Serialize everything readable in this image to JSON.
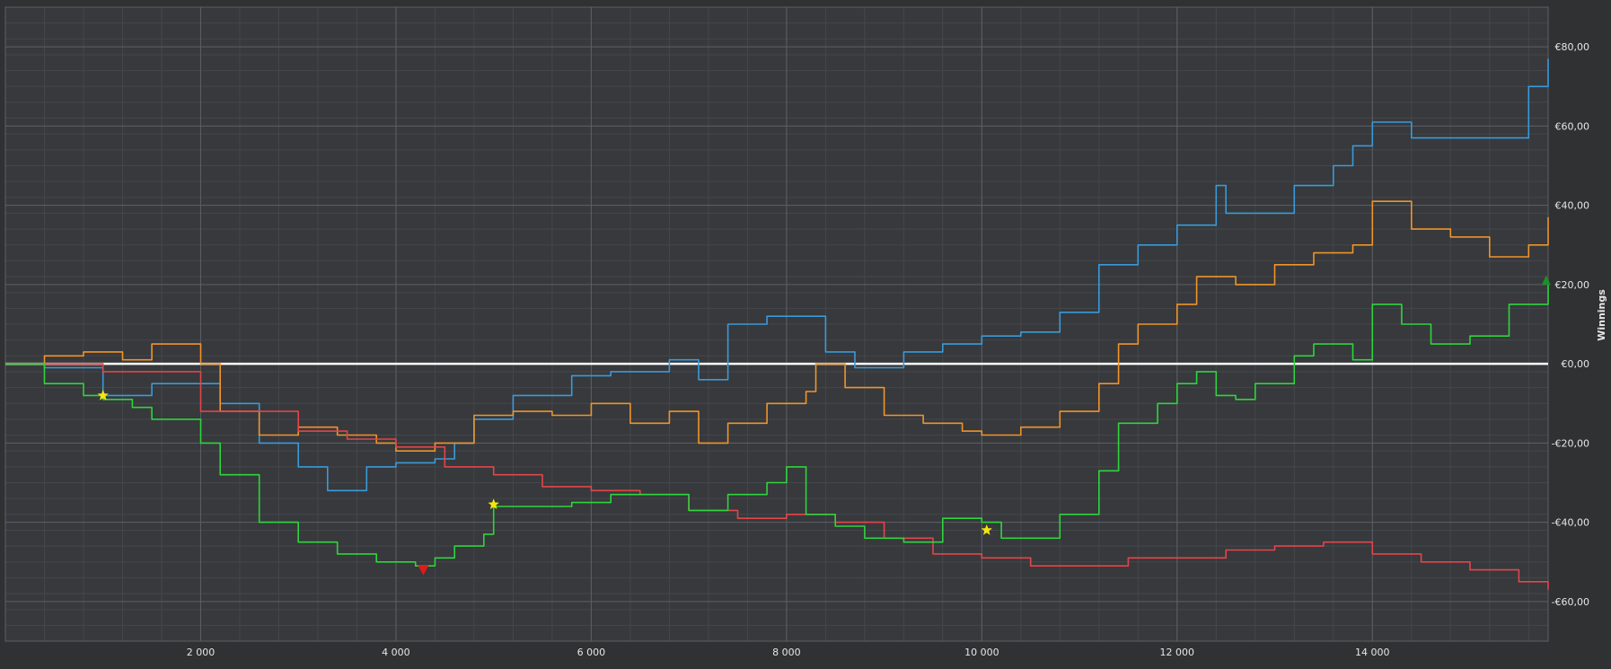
{
  "chart_data": {
    "type": "line",
    "ylabel": "Winnings",
    "xlim": [
      0,
      15800
    ],
    "ylim": [
      -70,
      90
    ],
    "grid": true,
    "x_ticks": [
      {
        "value": 2000,
        "label": "2 000"
      },
      {
        "value": 4000,
        "label": "4 000"
      },
      {
        "value": 6000,
        "label": "6 000"
      },
      {
        "value": 8000,
        "label": "8 000"
      },
      {
        "value": 10000,
        "label": "10 000"
      },
      {
        "value": 12000,
        "label": "12 000"
      },
      {
        "value": 14000,
        "label": "14 000"
      }
    ],
    "y_ticks": [
      {
        "value": 80,
        "label": "€80,00"
      },
      {
        "value": 60,
        "label": "€60,00"
      },
      {
        "value": 40,
        "label": "€40,00"
      },
      {
        "value": 20,
        "label": "€20,00"
      },
      {
        "value": 0,
        "label": "€0,00"
      },
      {
        "value": -20,
        "label": "-€20,00"
      },
      {
        "value": -40,
        "label": "-€40,00"
      },
      {
        "value": -60,
        "label": "-€60,00"
      }
    ],
    "series": [
      {
        "color": "#3a9ad9",
        "x": [
          0,
          400,
          1000,
          1500,
          2000,
          2200,
          2600,
          3000,
          3300,
          3700,
          4000,
          4400,
          4600,
          4800,
          5200,
          5800,
          6200,
          6800,
          7100,
          7400,
          7800,
          8200,
          8400,
          8700,
          9200,
          9600,
          10000,
          10400,
          10800,
          11200,
          11600,
          12000,
          12400,
          12500,
          12800,
          13200,
          13600,
          13800,
          14000,
          14400,
          14800,
          15200,
          15600,
          15800
        ],
        "y": [
          0,
          -1,
          -8,
          -5,
          -5,
          -10,
          -20,
          -26,
          -32,
          -26,
          -25,
          -24,
          -20,
          -14,
          -8,
          -3,
          -2,
          1,
          -4,
          10,
          12,
          12,
          3,
          -1,
          3,
          5,
          7,
          8,
          13,
          25,
          30,
          35,
          45,
          38,
          38,
          45,
          50,
          55,
          61,
          57,
          57,
          57,
          70,
          77
        ]
      },
      {
        "color": "#f0942a",
        "x": [
          0,
          400,
          800,
          1200,
          1500,
          2000,
          2200,
          2600,
          3000,
          3400,
          3800,
          4000,
          4400,
          4600,
          4800,
          5200,
          5600,
          6000,
          6400,
          6800,
          7100,
          7400,
          7800,
          8200,
          8300,
          8600,
          9000,
          9400,
          9800,
          10000,
          10400,
          10800,
          11200,
          11400,
          11600,
          12000,
          12200,
          12600,
          13000,
          13400,
          13800,
          14000,
          14400,
          14800,
          15200,
          15600,
          15800
        ],
        "y": [
          0,
          2,
          3,
          1,
          5,
          0,
          -12,
          -18,
          -16,
          -18,
          -20,
          -22,
          -20,
          -20,
          -13,
          -12,
          -13,
          -10,
          -15,
          -12,
          -20,
          -15,
          -10,
          -7,
          0,
          -6,
          -13,
          -15,
          -17,
          -18,
          -16,
          -12,
          -5,
          5,
          10,
          15,
          22,
          20,
          25,
          28,
          30,
          41,
          34,
          32,
          27,
          30,
          37
        ]
      },
      {
        "color": "#e2464b",
        "x": [
          0,
          1000,
          2000,
          3000,
          3500,
          4000,
          4500,
          5000,
          5500,
          6000,
          6500,
          7000,
          7500,
          8000,
          8500,
          9000,
          9500,
          10000,
          10500,
          11000,
          11500,
          12000,
          12500,
          13000,
          13500,
          14000,
          14500,
          15000,
          15500,
          15800
        ],
        "y": [
          0,
          -2,
          -12,
          -17,
          -19,
          -21,
          -26,
          -28,
          -31,
          -32,
          -33,
          -37,
          -39,
          -38,
          -40,
          -44,
          -48,
          -49,
          -51,
          -51,
          -49,
          -49,
          -47,
          -46,
          -45,
          -48,
          -50,
          -52,
          -55,
          -57
        ]
      },
      {
        "color": "#2fd43d",
        "x": [
          0,
          400,
          800,
          1000,
          1300,
          1500,
          2000,
          2200,
          2600,
          3000,
          3400,
          3800,
          4200,
          4400,
          4600,
          4900,
          5000,
          5400,
          5800,
          6200,
          6600,
          7000,
          7400,
          7800,
          8000,
          8200,
          8500,
          8800,
          9200,
          9600,
          10000,
          10200,
          10400,
          10800,
          11200,
          11400,
          11800,
          12000,
          12200,
          12400,
          12600,
          12800,
          13200,
          13400,
          13800,
          14000,
          14300,
          14600,
          15000,
          15400,
          15800
        ],
        "y": [
          0,
          -5,
          -8,
          -9,
          -11,
          -14,
          -20,
          -28,
          -40,
          -45,
          -48,
          -50,
          -51,
          -49,
          -46,
          -43,
          -36,
          -36,
          -35,
          -33,
          -33,
          -37,
          -33,
          -30,
          -26,
          -38,
          -41,
          -44,
          -45,
          -39,
          -40,
          -44,
          -44,
          -38,
          -27,
          -15,
          -10,
          -5,
          -2,
          -8,
          -9,
          -5,
          2,
          5,
          1,
          15,
          10,
          5,
          7,
          15,
          21
        ]
      }
    ],
    "markers": [
      {
        "shape": "star",
        "color": "#f5e50f",
        "x": 1000,
        "y": -8
      },
      {
        "shape": "star",
        "color": "#f5e50f",
        "x": 5000,
        "y": -35.5
      },
      {
        "shape": "star",
        "color": "#f5e50f",
        "x": 10050,
        "y": -42
      },
      {
        "shape": "triangle-down",
        "color": "#e01a1a",
        "x": 4280,
        "y": -52
      },
      {
        "shape": "triangle-up",
        "color": "#1e8e2a",
        "x": 15780,
        "y": 21
      }
    ]
  }
}
